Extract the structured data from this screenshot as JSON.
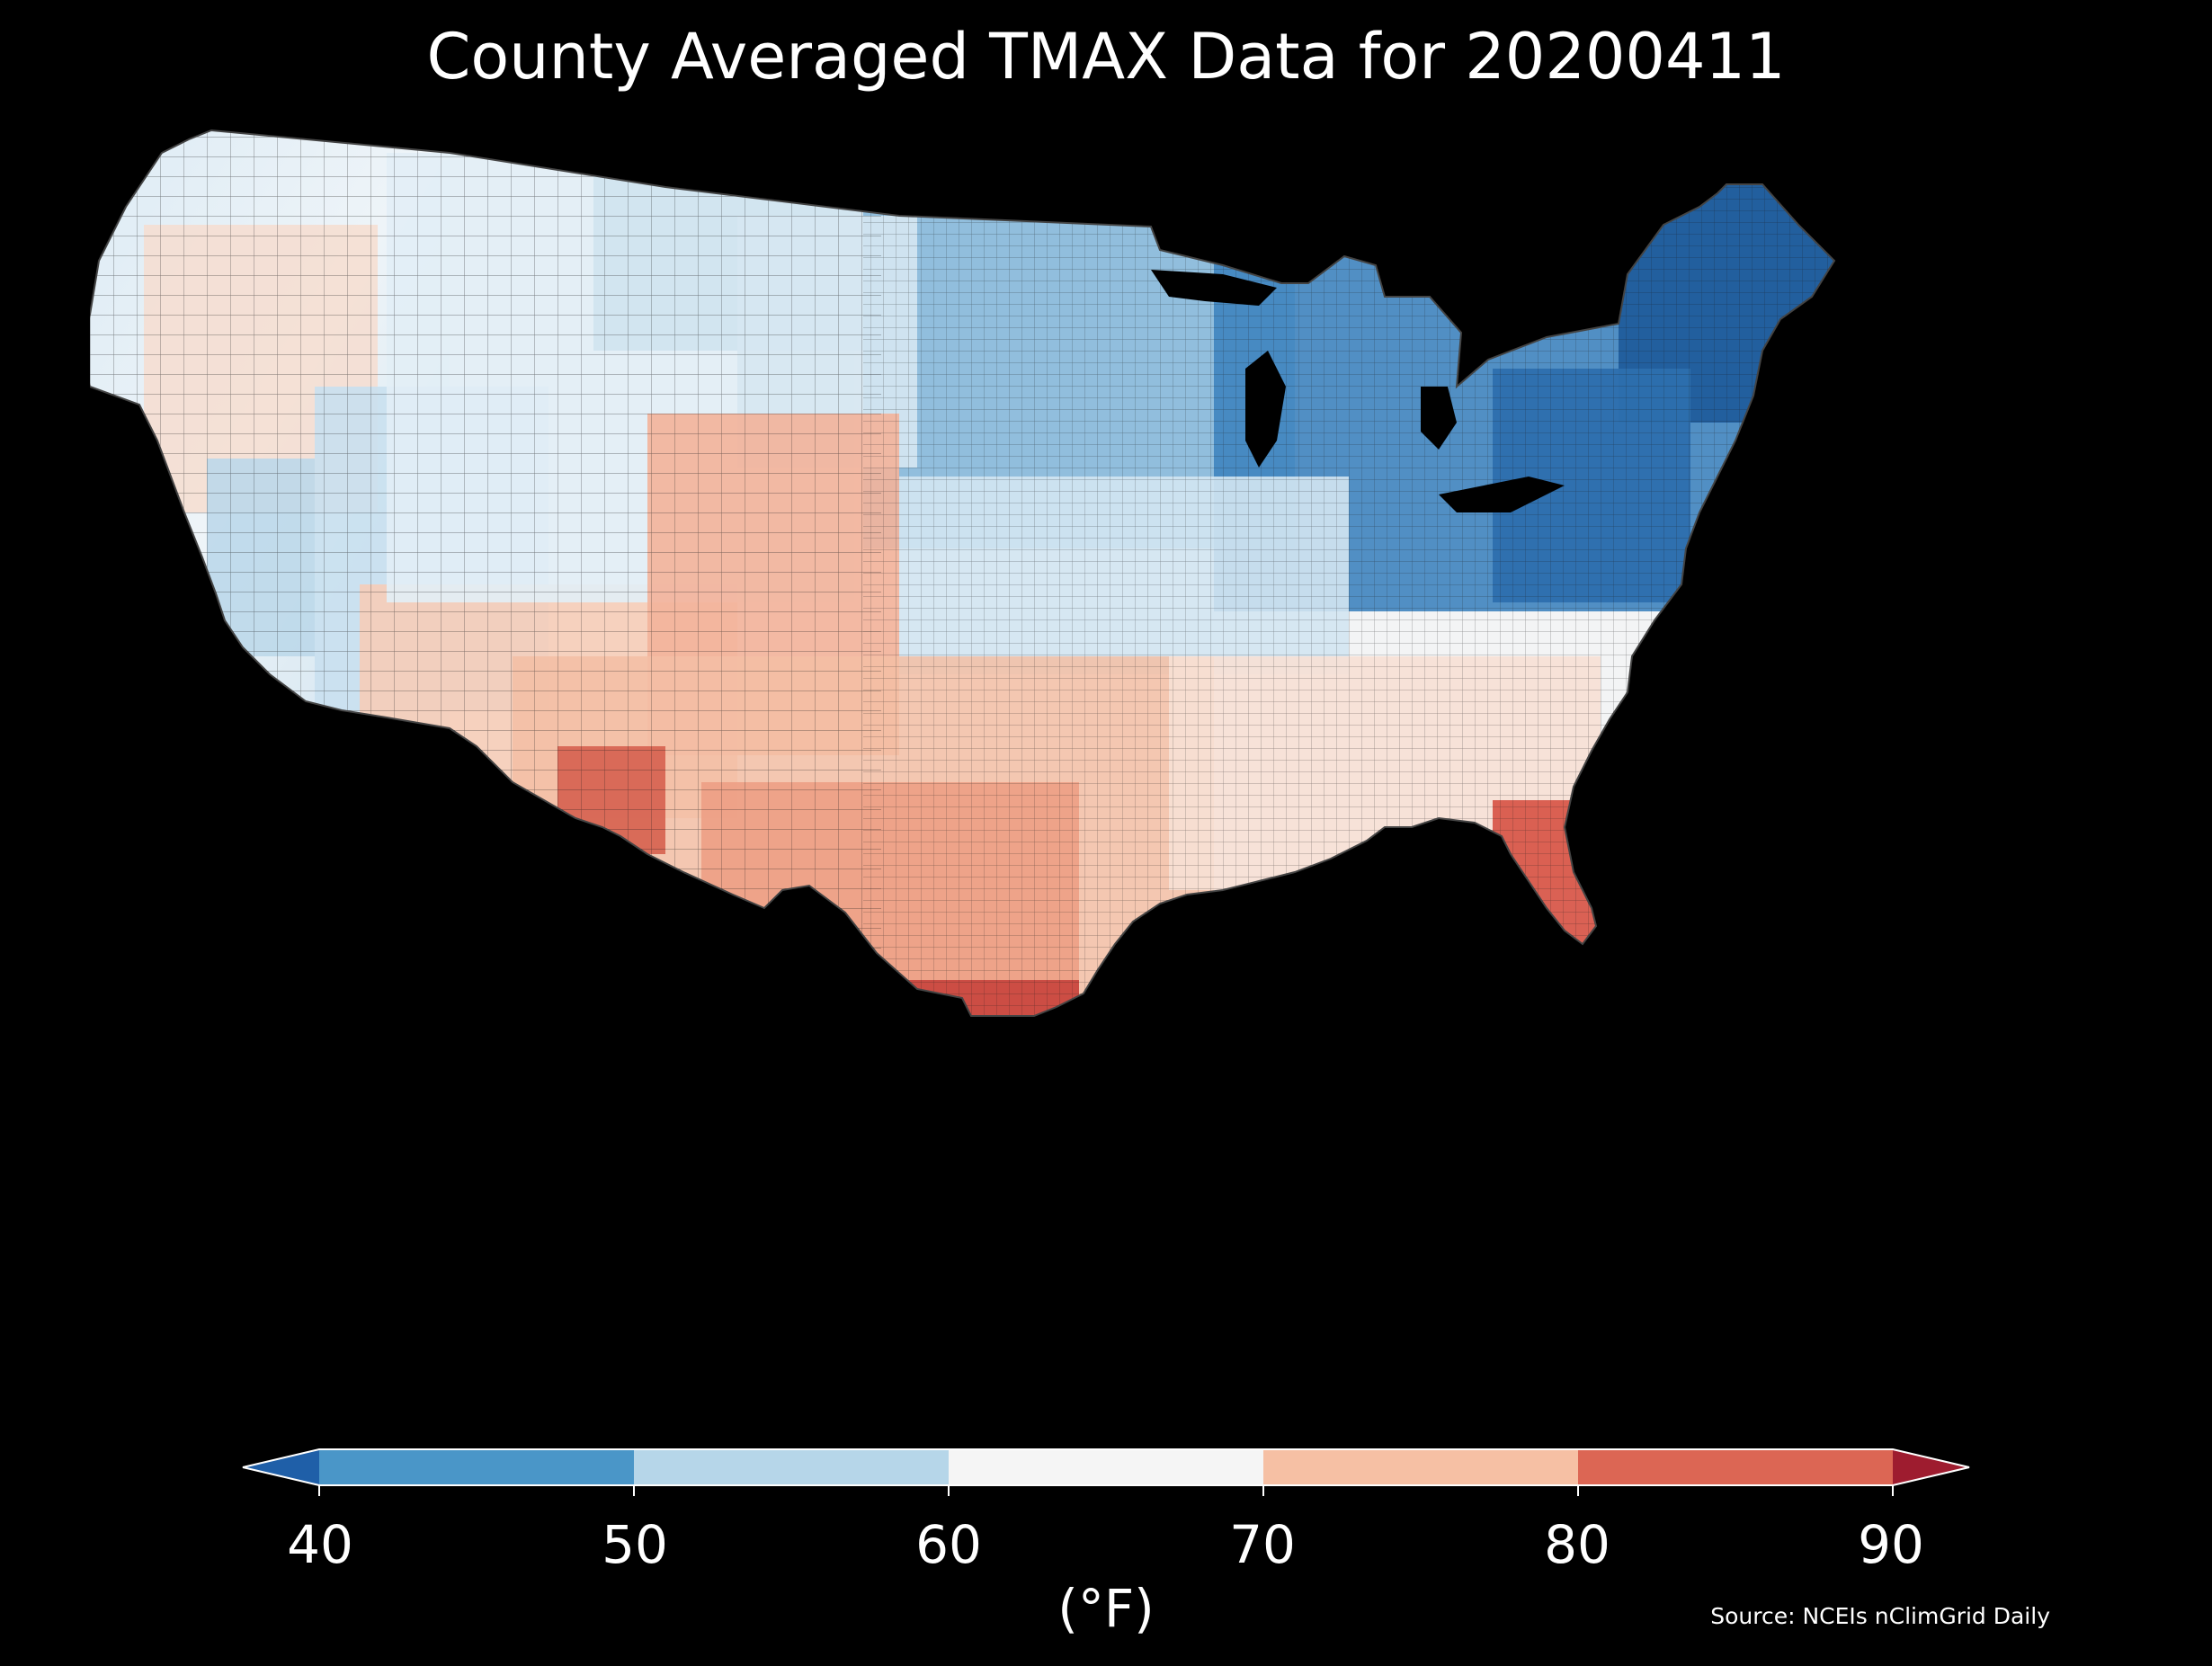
{
  "map": {
    "title": "County Averaged TMAX Data for 20200411",
    "region": "contiguous United States counties",
    "background": "#000000"
  },
  "colorbar": {
    "label": "(°F)",
    "ticks": [
      "40",
      "50",
      "60",
      "70",
      "80",
      "90"
    ],
    "extend": "both",
    "bins": [
      {
        "range": "<40",
        "color": "#1f5fa8"
      },
      {
        "range": "40-50",
        "color": "#4a96c8"
      },
      {
        "range": "50-60",
        "color": "#b6d6e9"
      },
      {
        "range": "60-70",
        "color": "#f5f5f5"
      },
      {
        "range": "70-80",
        "color": "#f6c0a4"
      },
      {
        "range": "80-90",
        "color": "#dc6654"
      },
      {
        "range": ">90",
        "color": "#9e1c2f"
      }
    ]
  },
  "source": "Source: NCEIs nClimGrid Daily"
}
